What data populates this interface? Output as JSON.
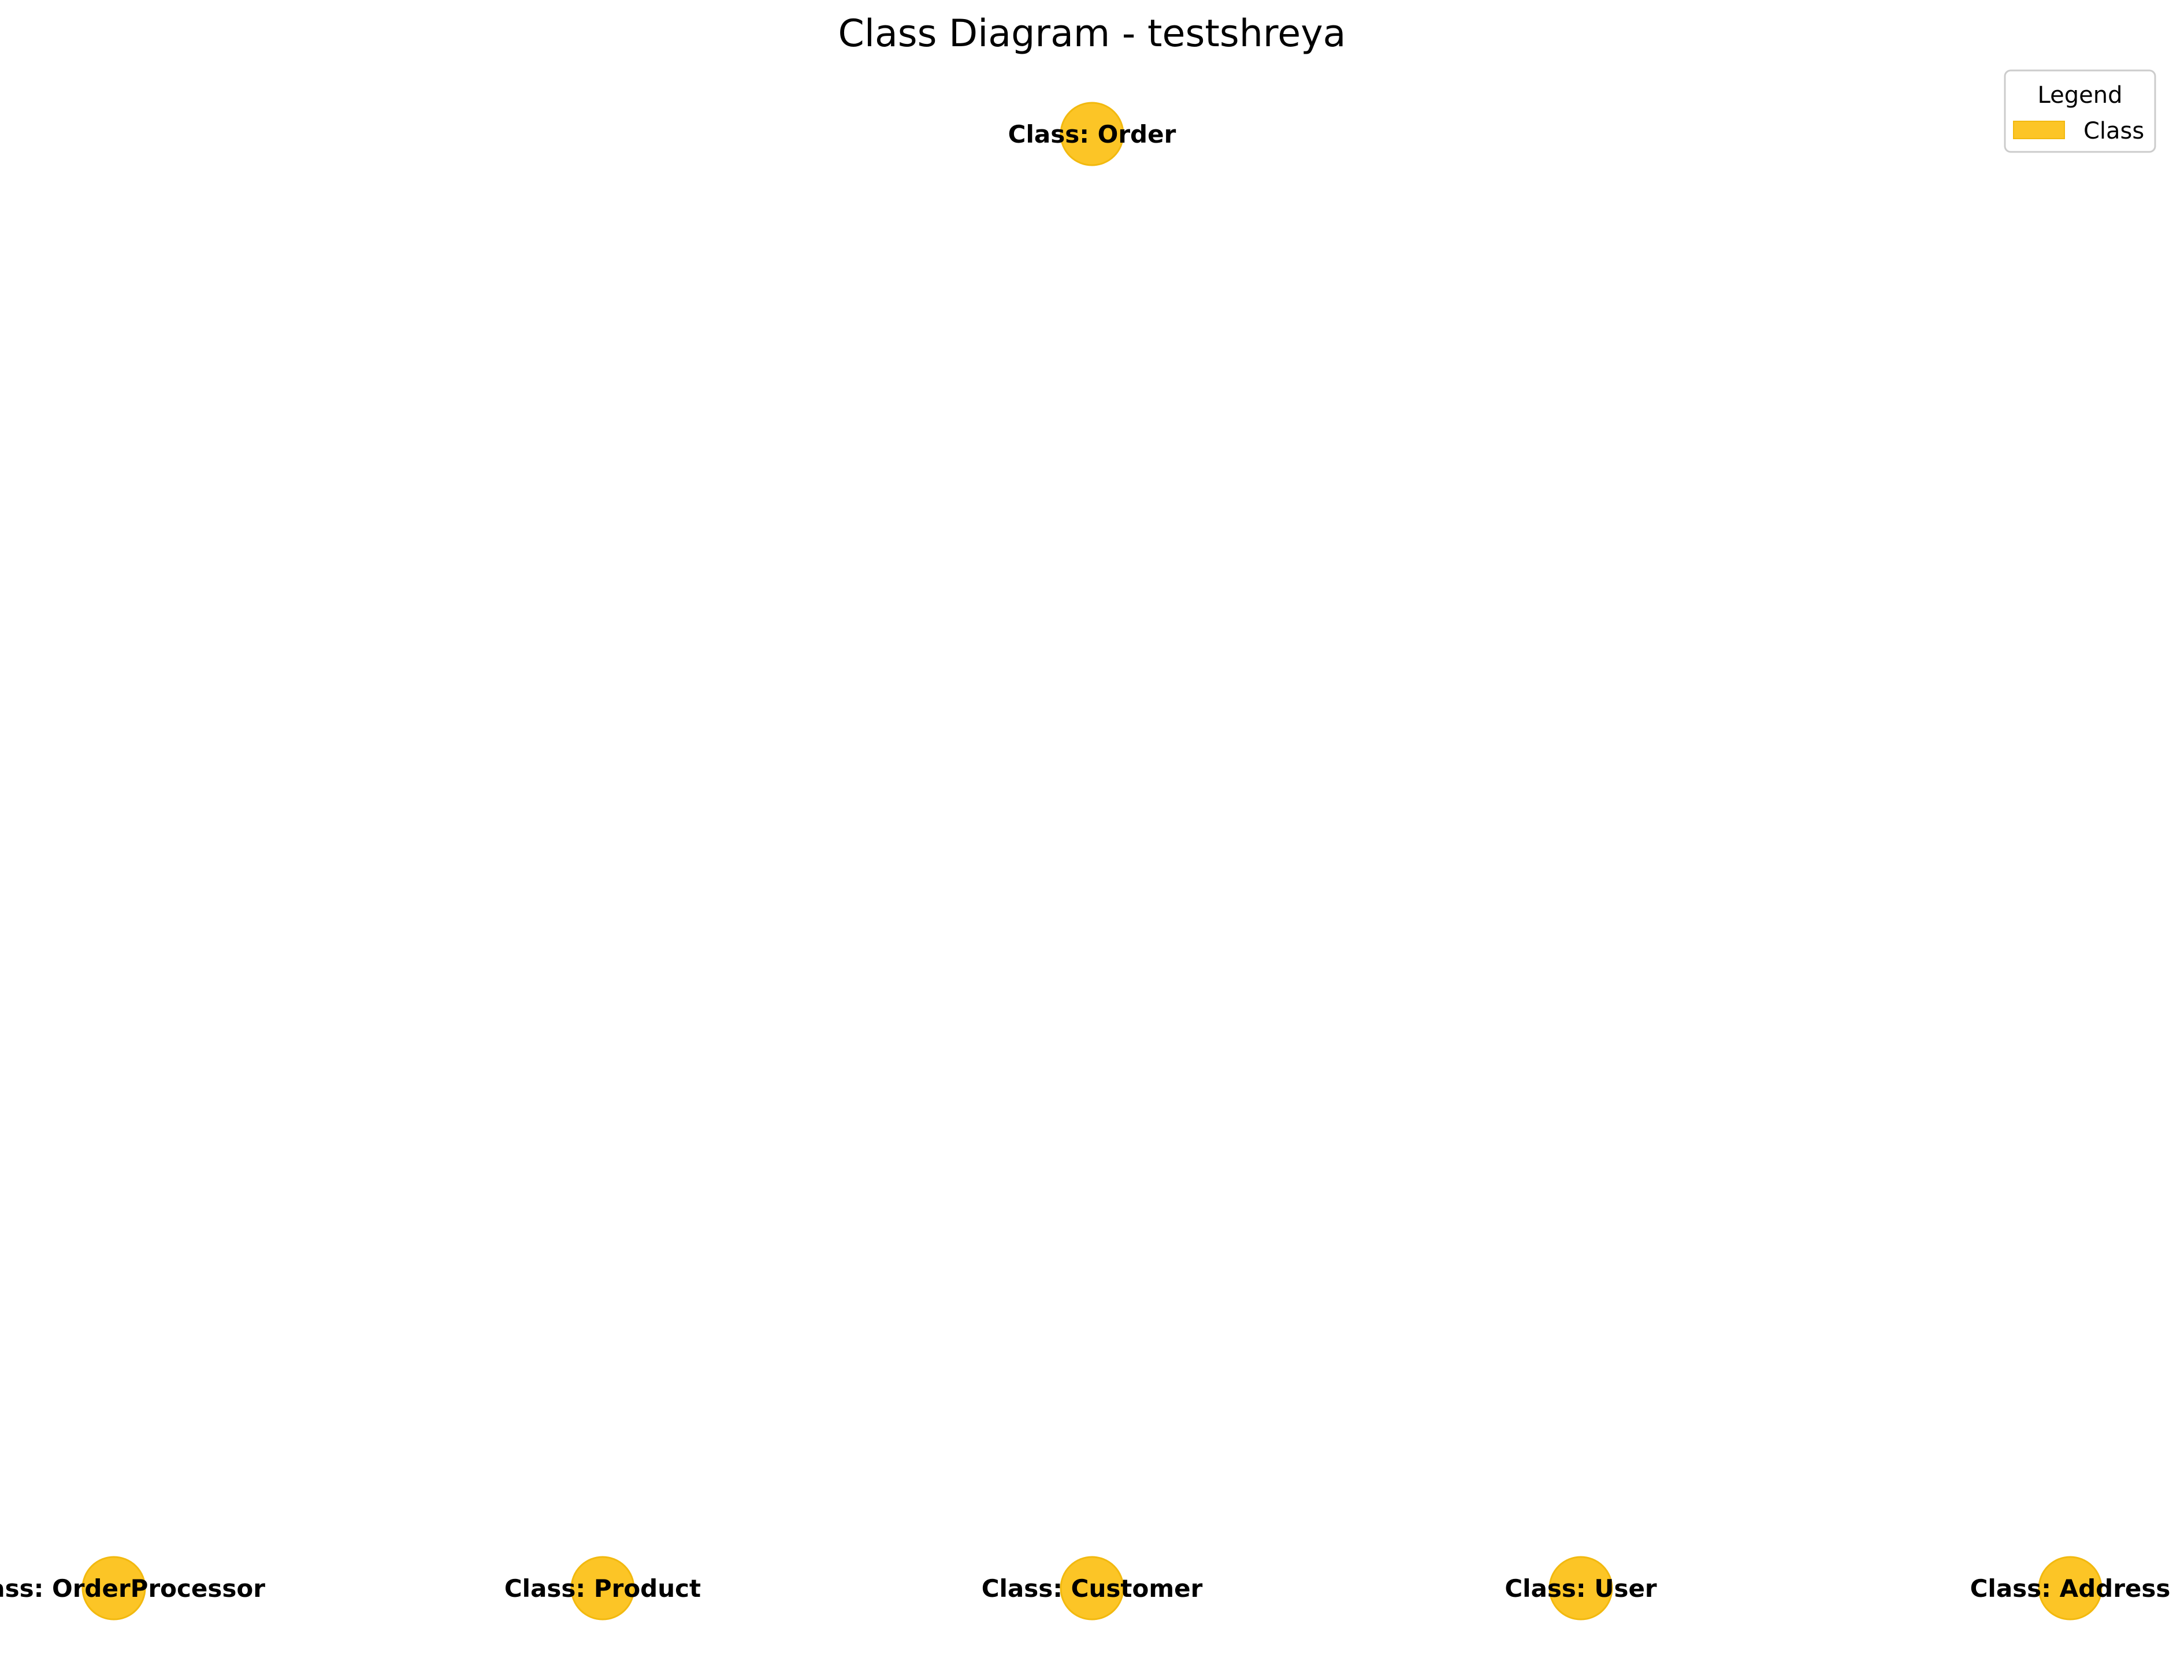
{
  "title": "Class Diagram - testshreya",
  "node_color": "#fcc526",
  "node_edge_color": "#f2b90f",
  "nodes": [
    {
      "id": "order",
      "label": "Class: Order"
    },
    {
      "id": "orderprocessor",
      "label": "Class: OrderProcessor"
    },
    {
      "id": "product",
      "label": "Class: Product"
    },
    {
      "id": "customer",
      "label": "Class: Customer"
    },
    {
      "id": "user",
      "label": "Class: User"
    },
    {
      "id": "address",
      "label": "Class: Address"
    }
  ],
  "legend": {
    "title": "Legend",
    "items": [
      {
        "label": "Class",
        "color": "#fcc526"
      }
    ]
  }
}
